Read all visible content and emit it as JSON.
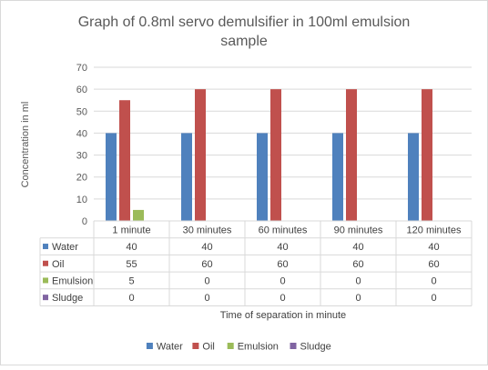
{
  "chart_data": {
    "type": "bar",
    "title_lines": [
      "Graph of 0.8ml servo demulsifier in 100ml emulsion",
      "sample"
    ],
    "ylabel": "Concentration in ml",
    "xlabel": "Time of separation in minute",
    "ylim": [
      0,
      70
    ],
    "yticks": [
      0,
      10,
      20,
      30,
      40,
      50,
      60,
      70
    ],
    "grid": true,
    "legend_position": "bottom",
    "categories": [
      "1 minute",
      "30 minutes",
      "60 minutes",
      "90 minutes",
      "120 minutes"
    ],
    "series": [
      {
        "name": "Water",
        "color": "#4f81bd",
        "values": [
          40,
          40,
          40,
          40,
          40
        ]
      },
      {
        "name": "Oil",
        "color": "#c0504d",
        "values": [
          55,
          60,
          60,
          60,
          60
        ]
      },
      {
        "name": "Emulsion",
        "color": "#9bbb59",
        "values": [
          5,
          0,
          0,
          0,
          0
        ]
      },
      {
        "name": "Sludge",
        "color": "#8064a2",
        "values": [
          0,
          0,
          0,
          0,
          0
        ]
      }
    ]
  }
}
